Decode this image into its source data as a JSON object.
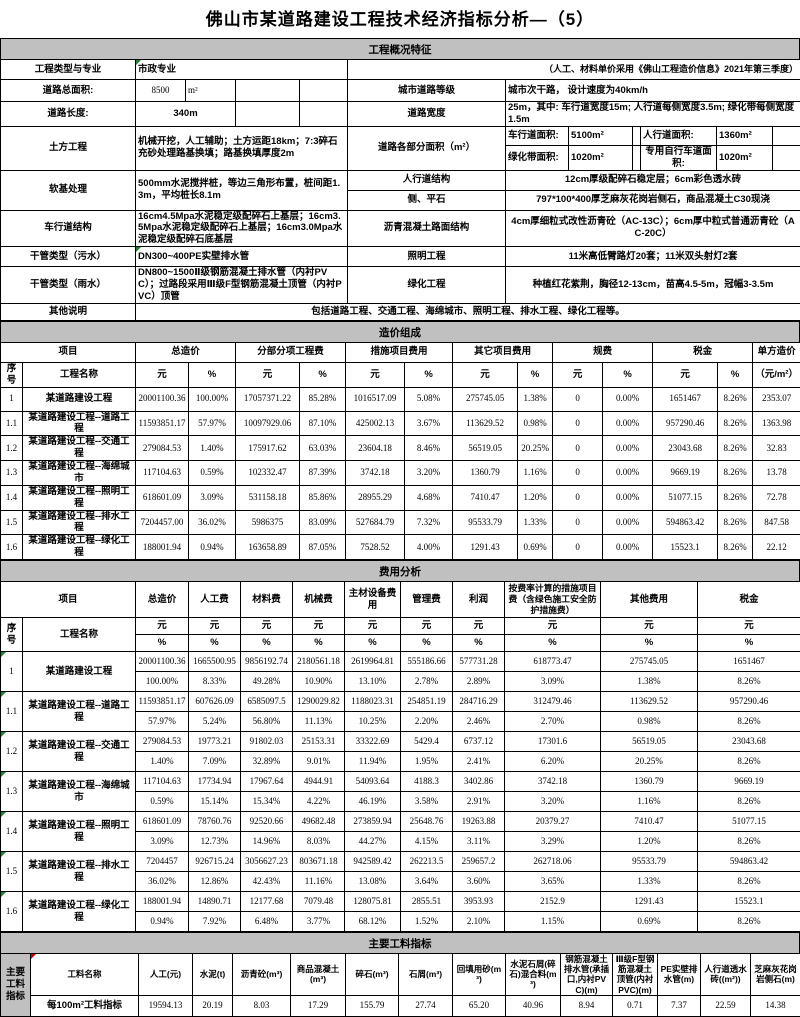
{
  "title": "佛山市某道路建设工程技术经济指标分析—（5）",
  "overview": {
    "section_title": "工程概况特征",
    "type_label": "工程类型与专业",
    "type_value": "市政专业",
    "price_note": "（人工、材料单价采用《佛山工程造价信息》2021年第三季度）",
    "area_label": "道路总面积:",
    "area_value": "8500",
    "area_unit": "m²",
    "grade_label": "城市道路等级",
    "grade_value": "城市次干路， 设计速度为40km/h",
    "length_label": "道路长度:",
    "length_value": "340m",
    "width_label": "道路宽度",
    "width_value": "25m，其中: 车行道宽度15m; 人行道每侧宽度3.5m; 绿化带每侧宽度1.5m",
    "earthwork_label": "土方工程",
    "earthwork_value": "机械开挖，人工辅助；土方运距18km；7:3碎石充砂处理路基换填；路基换填厚度2m",
    "parts_area_label": "道路各部分面积（m²）",
    "parts": [
      {
        "label": "车行道面积:",
        "value": "5100m²"
      },
      {
        "label": "人行道面积:",
        "value": "1360m²"
      },
      {
        "label": "绿化带面积:",
        "value": "1020m²"
      },
      {
        "label": "专用自行车道面积:",
        "value": "1020m²"
      }
    ],
    "soft_label": "软基处理",
    "soft_value": "500mm水泥搅拌桩，等边三角形布置，桩间距1.3m，平均桩长8.1m",
    "sidewalk_label": "人行道结构",
    "sidewalk_value": "12cm厚级配碎石稳定层；6cm彩色透水砖",
    "curb_label": "侧、平石",
    "curb_value": "797*100*400厚芝麻灰花岗岩侧石，商品混凝土C30现浇",
    "roadway_label": "车行道结构",
    "roadway_value": "16cm4.5Mpa水泥稳定级配碎石上基层；16cm3.5Mpa水泥稳定级配碎石上基层；16cm3.0Mpa水泥稳定级配碎石底基层",
    "asphalt_label": "沥青混凝土路面结构",
    "asphalt_value": "4cm厚细粒式改性沥青砼（AC-13C）；6cm厚中粒式普通沥青砼（AC-20C）",
    "sewage_label": "干管类型（污水）",
    "sewage_value": "DN300~400PE实壁排水管",
    "lighting_label": "照明工程",
    "lighting_value": "11米高低臂路灯20套；11米双头射灯2套",
    "rain_label": "干管类型（雨水）",
    "rain_value": "DN800~1500Ⅱ级钢筋混凝土排水管（内衬PVC）；过路段采用Ⅲ级F型钢筋混凝土顶管（内衬PVC）顶管",
    "green_label": "绿化工程",
    "green_value": "种植红花紫荆，胸径12-13cm，苗高4.5-5m，冠幅3-3.5m",
    "other_label": "其他说明",
    "other_value": "包括道路工程、交通工程、海绵城市、照明工程、排水工程、绿化工程等。"
  },
  "cost_composition": {
    "section_title": "造价组成",
    "group_headers": [
      "项目",
      "总造价",
      "分部分项工程费",
      "措施项目费用",
      "其它项目费用",
      "规费",
      "税金",
      "单方造价"
    ],
    "sn_label": "序号",
    "name_label": "工程名称",
    "unit_yuan": "元",
    "unit_pct": "%",
    "unit_per": "（元/m²）",
    "rows": [
      [
        "1",
        "某道路建设工程",
        "20001100.36",
        "100.00%",
        "17057371.22",
        "85.28%",
        "1016517.09",
        "5.08%",
        "275745.05",
        "1.38%",
        "0",
        "0.00%",
        "1651467",
        "8.26%",
        "2353.07"
      ],
      [
        "1.1",
        "某道路建设工程--道路工程",
        "11593851.17",
        "57.97%",
        "10097929.06",
        "87.10%",
        "425002.13",
        "3.67%",
        "113629.52",
        "0.98%",
        "0",
        "0.00%",
        "957290.46",
        "8.26%",
        "1363.98"
      ],
      [
        "1.2",
        "某道路建设工程--交通工程",
        "279084.53",
        "1.40%",
        "175917.62",
        "63.03%",
        "23604.18",
        "8.46%",
        "56519.05",
        "20.25%",
        "0",
        "0.00%",
        "23043.68",
        "8.26%",
        "32.83"
      ],
      [
        "1.3",
        "某道路建设工程--海绵城市",
        "117104.63",
        "0.59%",
        "102332.47",
        "87.39%",
        "3742.18",
        "3.20%",
        "1360.79",
        "1.16%",
        "0",
        "0.00%",
        "9669.19",
        "8.26%",
        "13.78"
      ],
      [
        "1.4",
        "某道路建设工程--照明工程",
        "618601.09",
        "3.09%",
        "531158.18",
        "85.86%",
        "28955.29",
        "4.68%",
        "7410.47",
        "1.20%",
        "0",
        "0.00%",
        "51077.15",
        "8.26%",
        "72.78"
      ],
      [
        "1.5",
        "某道路建设工程--排水工程",
        "7204457.00",
        "36.02%",
        "5986375",
        "83.09%",
        "527684.79",
        "7.32%",
        "95533.79",
        "1.33%",
        "0",
        "0.00%",
        "594863.42",
        "8.26%",
        "847.58"
      ],
      [
        "1.6",
        "某道路建设工程--绿化工程",
        "188001.94",
        "0.94%",
        "163658.89",
        "87.05%",
        "7528.52",
        "4.00%",
        "1291.43",
        "0.69%",
        "0",
        "0.00%",
        "15523.1",
        "8.26%",
        "22.12"
      ]
    ]
  },
  "cost_analysis": {
    "section_title": "费用分析",
    "project_label": "项目",
    "sn_label": "序号",
    "name_label": "工程名称",
    "unit_yuan": "元",
    "unit_pct": "%",
    "col_headers": [
      "总造价",
      "人工费",
      "材料费",
      "机械费",
      "主材设备费用",
      "管理费",
      "利润",
      "按费率计算的措施项目费（含绿色施工安全防护措施费）",
      "其他费用",
      "税金"
    ],
    "rows": [
      {
        "no": "1",
        "name": "某道路建设工程",
        "yuan": [
          "20001100.36",
          "1665500.95",
          "9856192.74",
          "2180561.18",
          "2619964.81",
          "555186.66",
          "577731.28",
          "618773.47",
          "275745.05",
          "1651467"
        ],
        "pct": [
          "100.00%",
          "8.33%",
          "49.28%",
          "10.90%",
          "13.10%",
          "2.78%",
          "2.89%",
          "3.09%",
          "1.38%",
          "8.26%"
        ]
      },
      {
        "no": "1.1",
        "name": "某道路建设工程--道路工程",
        "yuan": [
          "11593851.17",
          "607626.09",
          "6585097.5",
          "1290029.82",
          "1188023.31",
          "254851.19",
          "284716.29",
          "312479.46",
          "113629.52",
          "957290.46"
        ],
        "pct": [
          "57.97%",
          "5.24%",
          "56.80%",
          "11.13%",
          "10.25%",
          "2.20%",
          "2.46%",
          "2.70%",
          "0.98%",
          "8.26%"
        ]
      },
      {
        "no": "1.2",
        "name": "某道路建设工程--交通工程",
        "yuan": [
          "279084.53",
          "19773.21",
          "91802.03",
          "25153.31",
          "33322.69",
          "5429.4",
          "6737.12",
          "17301.6",
          "56519.05",
          "23043.68"
        ],
        "pct": [
          "1.40%",
          "7.09%",
          "32.89%",
          "9.01%",
          "11.94%",
          "1.95%",
          "2.41%",
          "6.20%",
          "20.25%",
          "8.26%"
        ]
      },
      {
        "no": "1.3",
        "name": "某道路建设工程--海绵城市",
        "yuan": [
          "117104.63",
          "17734.94",
          "17967.64",
          "4944.91",
          "54093.64",
          "4188.3",
          "3402.86",
          "3742.18",
          "1360.79",
          "9669.19"
        ],
        "pct": [
          "0.59%",
          "15.14%",
          "15.34%",
          "4.22%",
          "46.19%",
          "3.58%",
          "2.91%",
          "3.20%",
          "1.16%",
          "8.26%"
        ]
      },
      {
        "no": "1.4",
        "name": "某道路建设工程--照明工程",
        "yuan": [
          "618601.09",
          "78760.76",
          "92520.66",
          "49682.48",
          "273859.94",
          "25648.76",
          "19263.88",
          "20379.27",
          "7410.47",
          "51077.15"
        ],
        "pct": [
          "3.09%",
          "12.73%",
          "14.96%",
          "8.03%",
          "44.27%",
          "4.15%",
          "3.11%",
          "3.29%",
          "1.20%",
          "8.26%"
        ]
      },
      {
        "no": "1.5",
        "name": "某道路建设工程--排水工程",
        "yuan": [
          "7204457",
          "926715.24",
          "3056627.23",
          "803671.18",
          "942589.42",
          "262213.5",
          "259657.2",
          "262718.06",
          "95533.79",
          "594863.42"
        ],
        "pct": [
          "36.02%",
          "12.86%",
          "42.43%",
          "11.16%",
          "13.08%",
          "3.64%",
          "3.60%",
          "3.65%",
          "1.33%",
          "8.26%"
        ]
      },
      {
        "no": "1.6",
        "name": "某道路建设工程--绿化工程",
        "yuan": [
          "188001.94",
          "14890.71",
          "12177.68",
          "7079.48",
          "128075.81",
          "2855.51",
          "3953.93",
          "2152.9",
          "1291.43",
          "15523.1"
        ],
        "pct": [
          "0.94%",
          "7.92%",
          "6.48%",
          "3.77%",
          "68.12%",
          "1.52%",
          "2.10%",
          "1.15%",
          "0.69%",
          "8.26%"
        ]
      }
    ]
  },
  "materials": {
    "section_title": "主要工料指标",
    "side_label": "主要工料指标",
    "headers": [
      "工料名称",
      "人工(元)",
      "水泥(t)",
      "沥青砼(m³)",
      "商品混凝土(m³)",
      "碎石(m³)",
      "石屑(m³)",
      "回填用砂(m³)",
      "水泥石屑(碎石)混合料(m³)",
      "钢筋混凝土排水管(承插口,内衬PVC)(m)",
      "Ⅲ级F型钢筋混凝土顶管(内衬PVC)(m)",
      "PE实壁排水管(m)",
      "人行道透水砖((m²))",
      "芝麻灰花岗岩侧石(m)"
    ],
    "row_label": "每100m²工料指标",
    "values": [
      "19594.13",
      "20.19",
      "8.03",
      "17.29",
      "155.79",
      "27.74",
      "65.20",
      "40.96",
      "8.94",
      "0.71",
      "7.37",
      "22.59",
      "14.38"
    ]
  }
}
